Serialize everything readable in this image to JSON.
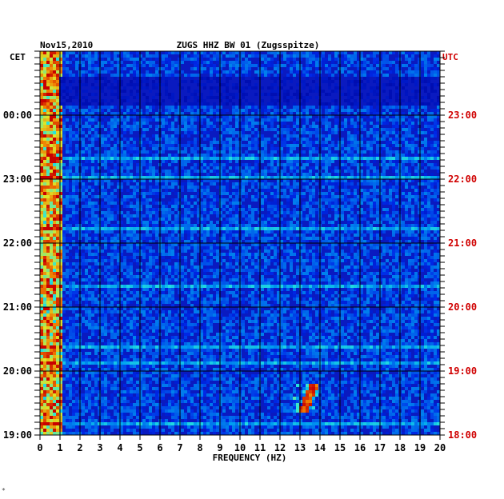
{
  "chart_data": {
    "type": "heatmap",
    "title_left": "Nov15,2010",
    "title_center": "ZUGS HHZ BW 01 (Zugsspitze)",
    "left_axis_label": "CET",
    "right_axis_label": "UTC",
    "xlabel": "FREQUENCY (HZ)",
    "x_ticks": [
      "0",
      "1",
      "2",
      "3",
      "4",
      "5",
      "6",
      "7",
      "8",
      "9",
      "10",
      "11",
      "12",
      "13",
      "14",
      "15",
      "16",
      "17",
      "18",
      "19",
      "20"
    ],
    "xlim": [
      0,
      20
    ],
    "left_ticks": [
      "00:00",
      "23:00",
      "22:00",
      "21:00",
      "20:00",
      "19:00"
    ],
    "right_ticks": [
      "23:00",
      "22:00",
      "21:00",
      "20:00",
      "19:00",
      "18:00"
    ],
    "colors": {
      "low": "#0000c8",
      "mid": "#00e0e0",
      "high": "#e00000",
      "right_axis": "#d00000",
      "grid": "#000000"
    },
    "features": [
      {
        "name": "low-frequency band",
        "freq_range_hz": [
          0,
          1
        ]
      },
      {
        "name": "event",
        "time_cet": "19:40",
        "freq_range_hz": [
          12.7,
          13.9
        ]
      }
    ]
  },
  "footer_mark": "*"
}
